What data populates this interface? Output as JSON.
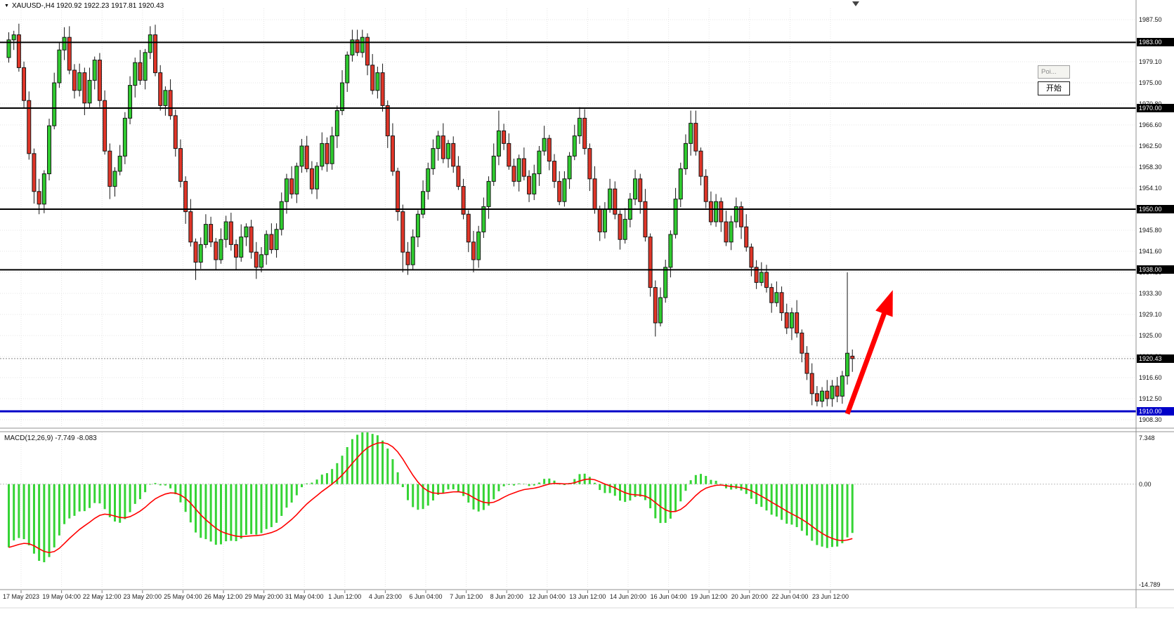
{
  "header": {
    "symbol_line": "XAUUSD-,H4 1920.92 1922.23 1917.81 1920.43",
    "symbol": "XAUUSD-",
    "timeframe": "H4",
    "ohlc_quote": {
      "open": "1920.92",
      "high": "1922.23",
      "low": "1917.81",
      "close": "1920.43"
    }
  },
  "overlay": {
    "pointer_tooltip": "Poi...",
    "start_button": "开始"
  },
  "indicator_label": "MACD(12,26,9) -7.749 -8.083",
  "chart_data": {
    "type": "candlestick",
    "symbol": "XAUUSD-",
    "timeframe": "H4",
    "grid": true,
    "ylim": [
      1906.9,
      1991.4
    ],
    "y_ticks": [
      "1987.50",
      "1983.30",
      "1979.10",
      "1975.00",
      "1970.80",
      "1966.60",
      "1962.50",
      "1958.30",
      "1954.10",
      "1950.00",
      "1945.80",
      "1941.60",
      "1937.50",
      "1933.30",
      "1929.10",
      "1925.00",
      "1920.80",
      "1916.60",
      "1912.50",
      "1908.30"
    ],
    "x_labels": [
      "17 May 2023",
      "19 May 04:00",
      "22 May 12:00",
      "23 May 20:00",
      "25 May 04:00",
      "26 May 12:00",
      "29 May 20:00",
      "31 May 04:00",
      "1 Jun 12:00",
      "4 Jun 23:00",
      "6 Jun 04:00",
      "7 Jun 12:00",
      "8 Jun 20:00",
      "12 Jun 04:00",
      "13 Jun 12:00",
      "14 Jun 20:00",
      "16 Jun 04:00",
      "19 Jun 12:00",
      "20 Jun 20:00",
      "22 Jun 04:00",
      "23 Jun 12:00"
    ],
    "colors": {
      "up": "#2fcb2f",
      "down": "#e03528",
      "outline": "#151515",
      "level": "#000000",
      "support": "#0000c8"
    },
    "levels": [
      {
        "price": 1983.0,
        "label": "1983.00",
        "color": "#000000",
        "width": 2
      },
      {
        "price": 1970.0,
        "label": "1970.00",
        "color": "#000000",
        "width": 2
      },
      {
        "price": 1950.0,
        "label": "1950.00",
        "color": "#000000",
        "width": 2
      },
      {
        "price": 1938.0,
        "label": "1938.00",
        "color": "#000000",
        "width": 2
      },
      {
        "price": 1910.0,
        "label": "1910.00",
        "color": "#0000c8",
        "width": 3
      }
    ],
    "current_price": {
      "value": 1920.43,
      "label": "1920.43"
    },
    "macd": {
      "params": "12,26,9",
      "macd_value": -7.749,
      "signal_value": -8.083,
      "scale_max": "7.348",
      "scale_zero": "0.00",
      "scale_min": "-14.789",
      "histogram_color": "#35d435",
      "signal_color": "#ff0000",
      "seed_ema12": 1980.0,
      "seed_ema26": 1990.0,
      "seed_signal": -9.0
    },
    "annotation_arrow": {
      "color": "#ff0000",
      "from": {
        "index": 166,
        "price": 1909.5
      },
      "to": {
        "index": 175,
        "price": 1934.0
      }
    },
    "candles": [
      [
        1980.0,
        1985.0,
        1979.0,
        1983.5
      ],
      [
        1983.5,
        1985.3,
        1981.5,
        1984.5
      ],
      [
        1984.5,
        1986.7,
        1977.2,
        1978.0
      ],
      [
        1978.0,
        1979.2,
        1969.9,
        1971.5
      ],
      [
        1971.5,
        1973.3,
        1959.8,
        1961.0
      ],
      [
        1961.0,
        1962.0,
        1951.1,
        1953.5
      ],
      [
        1953.5,
        1956.0,
        1949.0,
        1951.0
      ],
      [
        1951.0,
        1957.7,
        1949.2,
        1957.0
      ],
      [
        1957.0,
        1967.9,
        1955.7,
        1966.5
      ],
      [
        1966.5,
        1977.0,
        1965.8,
        1975.0
      ],
      [
        1975.0,
        1983.0,
        1974.0,
        1981.5
      ],
      [
        1981.5,
        1986.0,
        1979.5,
        1984.0
      ],
      [
        1984.0,
        1986.2,
        1976.7,
        1977.5
      ],
      [
        1977.5,
        1978.7,
        1971.9,
        1973.5
      ],
      [
        1973.5,
        1978.8,
        1972.3,
        1977.0
      ],
      [
        1977.0,
        1978.0,
        1968.6,
        1971.0
      ],
      [
        1971.0,
        1978.0,
        1970.1,
        1975.5
      ],
      [
        1975.5,
        1980.2,
        1973.7,
        1979.5
      ],
      [
        1979.5,
        1980.9,
        1970.2,
        1971.5
      ],
      [
        1971.5,
        1973.5,
        1960.8,
        1961.5
      ],
      [
        1961.5,
        1963.0,
        1952.0,
        1954.5
      ],
      [
        1954.5,
        1958.3,
        1952.5,
        1957.5
      ],
      [
        1957.5,
        1962.7,
        1956.7,
        1960.5
      ],
      [
        1960.5,
        1969.2,
        1958.9,
        1968.0
      ],
      [
        1968.0,
        1976.3,
        1966.8,
        1974.5
      ],
      [
        1974.5,
        1980.0,
        1972.1,
        1979.0
      ],
      [
        1979.0,
        1981.5,
        1974.6,
        1975.5
      ],
      [
        1975.5,
        1981.7,
        1973.7,
        1981.0
      ],
      [
        1981.0,
        1986.2,
        1979.7,
        1984.5
      ],
      [
        1984.5,
        1986.5,
        1976.3,
        1977.0
      ],
      [
        1977.0,
        1978.5,
        1969.5,
        1970.5
      ],
      [
        1970.5,
        1974.3,
        1968.5,
        1973.5
      ],
      [
        1973.5,
        1975.7,
        1967.7,
        1968.5
      ],
      [
        1968.5,
        1969.7,
        1960.4,
        1962.0
      ],
      [
        1962.0,
        1963.8,
        1954.3,
        1955.5
      ],
      [
        1955.5,
        1956.5,
        1947.1,
        1949.5
      ],
      [
        1949.5,
        1952.0,
        1942.6,
        1943.5
      ],
      [
        1943.5,
        1944.2,
        1936.0,
        1939.5
      ],
      [
        1939.5,
        1944.4,
        1938.2,
        1943.0
      ],
      [
        1943.0,
        1949.0,
        1942.3,
        1947.0
      ],
      [
        1947.0,
        1948.5,
        1942.5,
        1943.5
      ],
      [
        1943.5,
        1944.3,
        1938.0,
        1940.0
      ],
      [
        1940.0,
        1946.2,
        1939.2,
        1944.0
      ],
      [
        1944.0,
        1948.7,
        1942.4,
        1947.5
      ],
      [
        1947.5,
        1949.3,
        1941.8,
        1943.0
      ],
      [
        1943.0,
        1944.0,
        1938.1,
        1940.5
      ],
      [
        1940.5,
        1947.0,
        1939.6,
        1944.5
      ],
      [
        1944.5,
        1947.2,
        1942.7,
        1946.5
      ],
      [
        1946.5,
        1947.9,
        1940.2,
        1941.5
      ],
      [
        1941.5,
        1943.5,
        1936.2,
        1938.5
      ],
      [
        1938.5,
        1942.5,
        1937.5,
        1941.0
      ],
      [
        1941.0,
        1945.8,
        1939.0,
        1945.0
      ],
      [
        1945.0,
        1947.2,
        1941.2,
        1942.0
      ],
      [
        1942.0,
        1947.2,
        1940.4,
        1946.0
      ],
      [
        1946.0,
        1953.3,
        1944.8,
        1951.5
      ],
      [
        1951.5,
        1957.0,
        1949.1,
        1956.0
      ],
      [
        1956.0,
        1958.5,
        1952.1,
        1953.0
      ],
      [
        1953.0,
        1959.2,
        1951.2,
        1958.5
      ],
      [
        1958.5,
        1963.9,
        1957.2,
        1962.5
      ],
      [
        1962.5,
        1964.5,
        1957.3,
        1958.0
      ],
      [
        1958.0,
        1959.5,
        1953.0,
        1954.0
      ],
      [
        1954.0,
        1959.3,
        1952.0,
        1958.5
      ],
      [
        1958.5,
        1965.2,
        1957.7,
        1963.0
      ],
      [
        1963.0,
        1964.2,
        1957.4,
        1959.0
      ],
      [
        1959.0,
        1966.3,
        1957.8,
        1964.5
      ],
      [
        1964.5,
        1970.5,
        1962.1,
        1969.5
      ],
      [
        1969.5,
        1977.5,
        1968.6,
        1975.0
      ],
      [
        1975.0,
        1981.2,
        1973.2,
        1980.5
      ],
      [
        1980.5,
        1985.5,
        1979.2,
        1983.5
      ],
      [
        1983.5,
        1985.5,
        1980.3,
        1981.0
      ],
      [
        1981.0,
        1985.5,
        1980.0,
        1984.0
      ],
      [
        1984.0,
        1984.8,
        1976.5,
        1978.5
      ],
      [
        1978.5,
        1980.7,
        1972.7,
        1973.5
      ],
      [
        1973.5,
        1978.2,
        1971.9,
        1977.0
      ],
      [
        1977.0,
        1978.8,
        1969.3,
        1970.5
      ],
      [
        1970.5,
        1971.5,
        1962.1,
        1964.5
      ],
      [
        1964.5,
        1967.0,
        1956.6,
        1957.5
      ],
      [
        1957.5,
        1958.2,
        1947.7,
        1949.5
      ],
      [
        1949.5,
        1950.9,
        1937.5,
        1941.5
      ],
      [
        1941.5,
        1943.5,
        1937.0,
        1939.0
      ],
      [
        1939.0,
        1946.0,
        1938.0,
        1944.5
      ],
      [
        1944.5,
        1949.8,
        1942.5,
        1949.0
      ],
      [
        1949.0,
        1955.7,
        1948.2,
        1953.5
      ],
      [
        1953.5,
        1959.2,
        1951.9,
        1958.0
      ],
      [
        1958.0,
        1963.8,
        1956.8,
        1962.0
      ],
      [
        1962.0,
        1965.5,
        1959.6,
        1964.5
      ],
      [
        1964.5,
        1967.0,
        1959.1,
        1960.0
      ],
      [
        1960.0,
        1963.7,
        1958.2,
        1963.0
      ],
      [
        1963.0,
        1964.4,
        1957.2,
        1958.5
      ],
      [
        1958.5,
        1960.5,
        1953.8,
        1954.5
      ],
      [
        1954.5,
        1956.0,
        1948.0,
        1949.0
      ],
      [
        1949.0,
        1949.8,
        1941.5,
        1943.5
      ],
      [
        1943.5,
        1945.7,
        1937.5,
        1940.0
      ],
      [
        1940.0,
        1946.7,
        1938.4,
        1945.5
      ],
      [
        1945.5,
        1952.3,
        1944.3,
        1950.5
      ],
      [
        1950.5,
        1956.5,
        1948.1,
        1955.5
      ],
      [
        1955.5,
        1963.0,
        1954.6,
        1960.5
      ],
      [
        1960.5,
        1969.5,
        1958.7,
        1965.5
      ],
      [
        1965.5,
        1966.9,
        1961.7,
        1963.0
      ],
      [
        1963.0,
        1965.0,
        1957.8,
        1958.5
      ],
      [
        1958.5,
        1960.0,
        1954.5,
        1955.5
      ],
      [
        1955.5,
        1960.8,
        1953.5,
        1960.0
      ],
      [
        1960.0,
        1962.2,
        1955.7,
        1956.5
      ],
      [
        1956.5,
        1957.7,
        1951.4,
        1953.0
      ],
      [
        1953.0,
        1958.8,
        1951.8,
        1957.0
      ],
      [
        1957.0,
        1962.5,
        1954.6,
        1961.5
      ],
      [
        1961.5,
        1966.5,
        1960.6,
        1964.0
      ],
      [
        1964.0,
        1964.7,
        1957.7,
        1959.5
      ],
      [
        1959.5,
        1960.9,
        1954.2,
        1955.5
      ],
      [
        1955.5,
        1957.5,
        1950.8,
        1951.5
      ],
      [
        1951.5,
        1957.5,
        1950.5,
        1956.0
      ],
      [
        1956.0,
        1961.3,
        1954.0,
        1960.5
      ],
      [
        1960.5,
        1966.7,
        1959.7,
        1964.5
      ],
      [
        1964.5,
        1970.2,
        1962.9,
        1968.0
      ],
      [
        1968.0,
        1969.8,
        1960.8,
        1962.0
      ],
      [
        1962.0,
        1963.0,
        1953.6,
        1956.0
      ],
      [
        1956.0,
        1958.5,
        1949.1,
        1950.0
      ],
      [
        1950.0,
        1950.7,
        1943.7,
        1945.5
      ],
      [
        1945.5,
        1951.4,
        1944.2,
        1950.0
      ],
      [
        1950.0,
        1956.0,
        1949.3,
        1954.0
      ],
      [
        1954.0,
        1955.5,
        1948.0,
        1949.0
      ],
      [
        1949.0,
        1949.8,
        1942.0,
        1944.0
      ],
      [
        1944.0,
        1950.2,
        1943.2,
        1948.0
      ],
      [
        1948.0,
        1953.2,
        1946.4,
        1952.0
      ],
      [
        1952.0,
        1957.8,
        1950.8,
        1956.0
      ],
      [
        1956.0,
        1957.0,
        1949.1,
        1951.5
      ],
      [
        1951.5,
        1954.0,
        1943.6,
        1944.5
      ],
      [
        1944.5,
        1945.2,
        1932.7,
        1934.5
      ],
      [
        1934.5,
        1935.9,
        1924.8,
        1927.5
      ],
      [
        1927.5,
        1934.5,
        1926.8,
        1932.5
      ],
      [
        1932.5,
        1940.0,
        1931.5,
        1938.5
      ],
      [
        1938.5,
        1945.8,
        1936.5,
        1945.0
      ],
      [
        1945.0,
        1954.2,
        1944.2,
        1952.0
      ],
      [
        1952.0,
        1959.2,
        1950.4,
        1958.0
      ],
      [
        1958.0,
        1964.8,
        1956.8,
        1963.0
      ],
      [
        1963.0,
        1969.5,
        1960.6,
        1967.0
      ],
      [
        1967.0,
        1969.5,
        1960.6,
        1961.5
      ],
      [
        1961.5,
        1962.2,
        1954.7,
        1956.5
      ],
      [
        1956.5,
        1957.9,
        1950.2,
        1951.5
      ],
      [
        1951.5,
        1953.5,
        1946.8,
        1947.5
      ],
      [
        1947.5,
        1953.0,
        1946.5,
        1951.5
      ],
      [
        1951.5,
        1952.3,
        1945.5,
        1947.5
      ],
      [
        1947.5,
        1949.7,
        1942.7,
        1943.5
      ],
      [
        1943.5,
        1948.7,
        1941.9,
        1947.5
      ],
      [
        1947.5,
        1952.3,
        1946.3,
        1950.5
      ],
      [
        1950.5,
        1951.5,
        1944.1,
        1946.5
      ],
      [
        1946.5,
        1949.0,
        1941.6,
        1942.5
      ],
      [
        1942.5,
        1943.2,
        1936.7,
        1938.5
      ],
      [
        1938.5,
        1939.9,
        1934.2,
        1935.5
      ],
      [
        1935.5,
        1939.5,
        1934.8,
        1937.5
      ],
      [
        1937.5,
        1939.0,
        1933.5,
        1934.5
      ],
      [
        1934.5,
        1935.3,
        1929.5,
        1931.5
      ],
      [
        1931.5,
        1935.7,
        1930.7,
        1933.5
      ],
      [
        1933.5,
        1934.7,
        1927.9,
        1929.5
      ],
      [
        1929.5,
        1931.3,
        1925.3,
        1926.5
      ],
      [
        1926.5,
        1930.5,
        1924.1,
        1929.5
      ],
      [
        1929.5,
        1932.0,
        1924.6,
        1925.5
      ],
      [
        1925.5,
        1926.2,
        1919.7,
        1921.5
      ],
      [
        1921.5,
        1922.9,
        1916.2,
        1917.5
      ],
      [
        1917.5,
        1919.5,
        1911.2,
        1913.5
      ],
      [
        1913.5,
        1915.0,
        1911.0,
        1912.0
      ],
      [
        1912.0,
        1914.8,
        1910.8,
        1914.0
      ],
      [
        1914.0,
        1916.2,
        1911.0,
        1912.5
      ],
      [
        1912.5,
        1916.2,
        1910.9,
        1915.0
      ],
      [
        1915.0,
        1916.8,
        1911.8,
        1913.0
      ],
      [
        1913.0,
        1918.0,
        1911.5,
        1917.0
      ],
      [
        1917.0,
        1937.5,
        1915.3,
        1921.5
      ],
      [
        1920.92,
        1922.23,
        1917.81,
        1920.43
      ]
    ]
  }
}
